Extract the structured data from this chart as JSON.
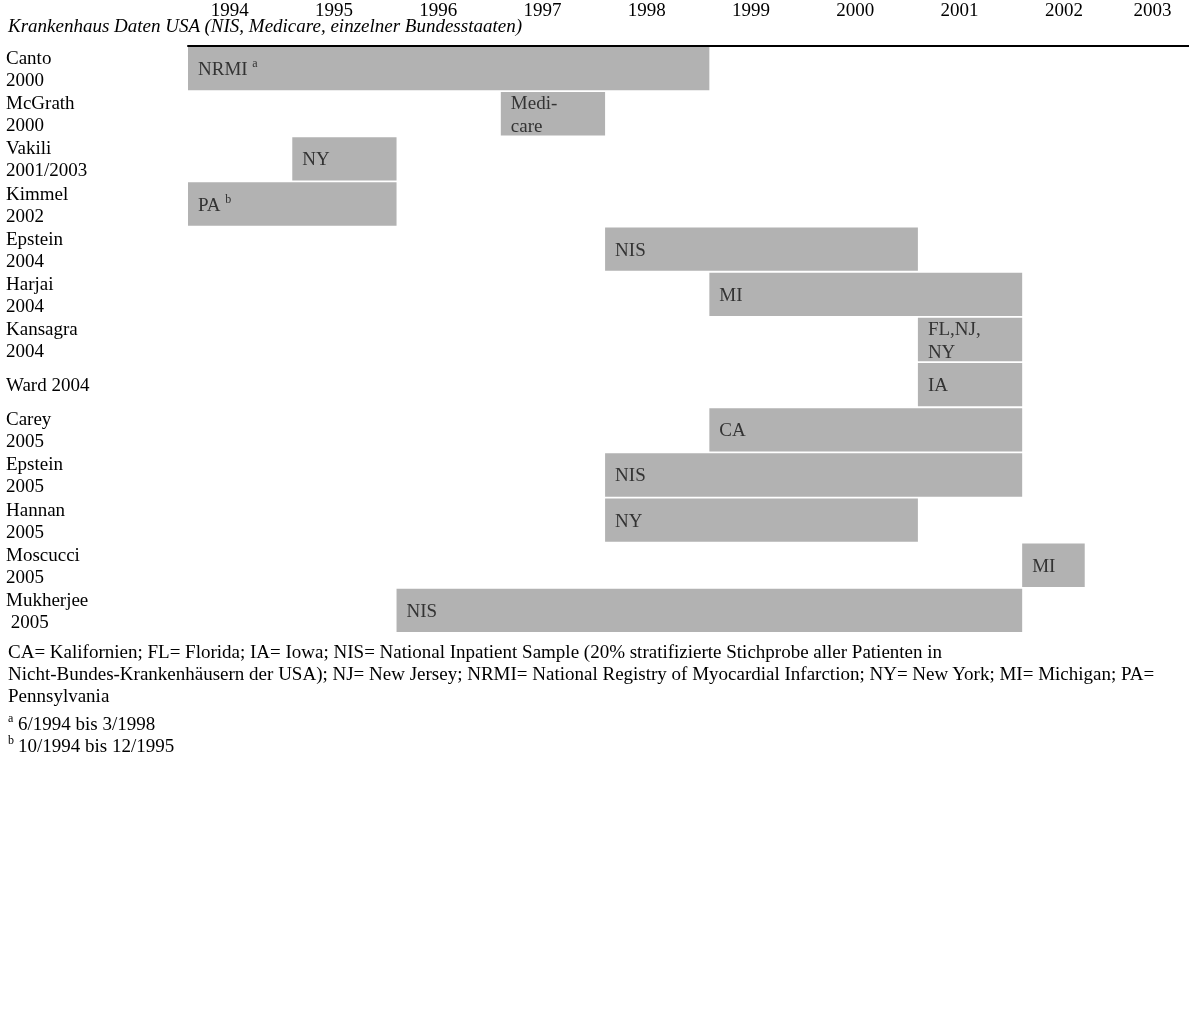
{
  "chart_data": {
    "type": "bar",
    "orientation": "horizontal",
    "subtitle": "Krankenhaus Daten USA (NIS, Medicare, einzelner Bundesstaaten)",
    "categories": [
      "Canto 2000",
      "McGrath 2000",
      "Vakili 2001/2003",
      "Kimmel 2002",
      "Epstein 2004",
      "Harjai 2004",
      "Kansagra 2004",
      "Ward 2004",
      "Carey 2005",
      "Epstein 2005",
      "Hannan 2005",
      "Moscucci 2005",
      "Mukherjee 2005"
    ],
    "base": [
      1994,
      1997,
      1995,
      1994,
      1998,
      1999,
      2001,
      2001,
      1999,
      1998,
      1998,
      2002,
      1996
    ],
    "values": [
      5,
      1,
      1,
      2,
      3,
      3,
      1,
      1,
      3,
      4,
      3,
      0.6,
      6
    ],
    "value_labels": [
      "NRMI $^{a}$",
      "Medi-\ncare",
      "NY",
      "PA $^{b}$",
      "NIS",
      "MI",
      "FL,NJ,\nNY",
      "IA",
      "CA",
      "NIS",
      "NY",
      "MI",
      "NIS"
    ],
    "color": "#b2b2b2",
    "xlim": [
      1994,
      2003.6
    ],
    "xticks": [
      {
        "value": 1994.4,
        "label": "1994"
      },
      {
        "value": 1995.4,
        "label": "1995"
      },
      {
        "value": 1996.4,
        "label": "1996"
      },
      {
        "value": 1997.4,
        "label": "1997"
      },
      {
        "value": 1998.4,
        "label": "1998"
      },
      {
        "value": 1999.4,
        "label": "1999"
      },
      {
        "value": 2000.4,
        "label": "2000"
      },
      {
        "value": 2001.4,
        "label": "2001"
      },
      {
        "value": 2002.4,
        "label": "2002"
      },
      {
        "value": 2003.25,
        "label": "2003"
      }
    ],
    "grid": false,
    "annotations": [
      "CA= Kalifornien; FL= Florida; IA= Iowa; NIS= National Inpatient Sample (20% stratifizierte Stichprobe aller Patienten in Nicht-Bundes-Krankenhäusern der USA); NJ= New Jersey; NRMI= National Registry of Myocardial Infarction; NY= New York; MI= Michigan; PA= Pennsylvania",
      "$^{a}$ 6/1994 bis 3/1998",
      "$^{b}$ 10/1994 bis 12/1995"
    ]
  }
}
